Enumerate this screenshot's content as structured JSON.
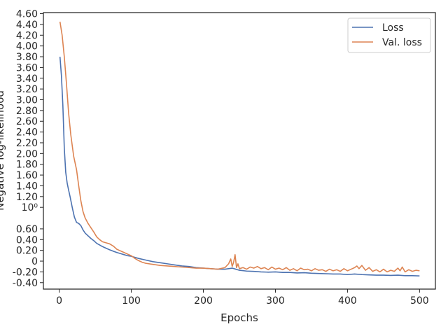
{
  "chart_data": {
    "type": "line",
    "xlabel": "Epochs",
    "ylabel": "Negative log-likelihood",
    "xlim": [
      -22,
      522
    ],
    "ylim": [
      -0.52,
      4.62
    ],
    "xticks": [
      {
        "value": 0,
        "label": "0"
      },
      {
        "value": 100,
        "label": "100"
      },
      {
        "value": 200,
        "label": "200"
      },
      {
        "value": 300,
        "label": "300"
      },
      {
        "value": 400,
        "label": "400"
      },
      {
        "value": 500,
        "label": "500"
      }
    ],
    "yticks": [
      {
        "value": 4.6,
        "label": "4.60"
      },
      {
        "value": 4.4,
        "label": "4.40"
      },
      {
        "value": 4.2,
        "label": "4.20"
      },
      {
        "value": 4.0,
        "label": "4.00"
      },
      {
        "value": 3.8,
        "label": "3.80"
      },
      {
        "value": 3.6,
        "label": "3.60"
      },
      {
        "value": 3.4,
        "label": "3.40"
      },
      {
        "value": 3.2,
        "label": "3.20"
      },
      {
        "value": 3.0,
        "label": "3.00"
      },
      {
        "value": 2.8,
        "label": "2.80"
      },
      {
        "value": 2.6,
        "label": "2.60"
      },
      {
        "value": 2.4,
        "label": "2.40"
      },
      {
        "value": 2.2,
        "label": "2.20"
      },
      {
        "value": 2.0,
        "label": "2.00"
      },
      {
        "value": 1.8,
        "label": "1.80"
      },
      {
        "value": 1.6,
        "label": "1.60"
      },
      {
        "value": 1.4,
        "label": "1.40"
      },
      {
        "value": 1.2,
        "label": "1.20"
      },
      {
        "value": 1.0,
        "label": "10⁰"
      },
      {
        "value": 0.6,
        "label": "0.60"
      },
      {
        "value": 0.4,
        "label": "0.40"
      },
      {
        "value": 0.2,
        "label": "0.20"
      },
      {
        "value": 0.0,
        "label": "0"
      },
      {
        "value": -0.2,
        "label": "-0.20"
      },
      {
        "value": -0.4,
        "label": "-0.40"
      }
    ],
    "legend_position": "top-right",
    "grid": false,
    "series": [
      {
        "name": "Loss",
        "color": "#4c72b0",
        "x": [
          1,
          3,
          5,
          7,
          9,
          11,
          13,
          15,
          18,
          21,
          24,
          27,
          30,
          33,
          36,
          40,
          44,
          48,
          52,
          56,
          60,
          65,
          70,
          75,
          80,
          85,
          90,
          95,
          100,
          110,
          120,
          130,
          140,
          150,
          160,
          170,
          180,
          190,
          200,
          210,
          220,
          230,
          240,
          245,
          250,
          260,
          270,
          280,
          290,
          300,
          310,
          320,
          330,
          340,
          350,
          360,
          370,
          380,
          390,
          400,
          410,
          420,
          430,
          440,
          450,
          460,
          470,
          480,
          490,
          500
        ],
        "y": [
          3.8,
          3.45,
          2.9,
          2.1,
          1.65,
          1.45,
          1.32,
          1.2,
          1.0,
          0.82,
          0.72,
          0.7,
          0.66,
          0.58,
          0.52,
          0.47,
          0.42,
          0.38,
          0.33,
          0.3,
          0.27,
          0.24,
          0.21,
          0.185,
          0.16,
          0.14,
          0.12,
          0.1,
          0.09,
          0.05,
          0.02,
          -0.01,
          -0.03,
          -0.05,
          -0.07,
          -0.09,
          -0.1,
          -0.12,
          -0.13,
          -0.14,
          -0.15,
          -0.15,
          -0.13,
          -0.15,
          -0.17,
          -0.185,
          -0.19,
          -0.2,
          -0.205,
          -0.2,
          -0.21,
          -0.21,
          -0.22,
          -0.215,
          -0.225,
          -0.23,
          -0.235,
          -0.24,
          -0.24,
          -0.25,
          -0.24,
          -0.25,
          -0.255,
          -0.26,
          -0.26,
          -0.265,
          -0.26,
          -0.27,
          -0.27,
          -0.275
        ]
      },
      {
        "name": "Val. loss",
        "color": "#dd8452",
        "x": [
          1,
          4,
          7,
          10,
          13,
          16,
          20,
          24,
          27,
          30,
          33,
          36,
          40,
          44,
          48,
          52,
          56,
          60,
          65,
          70,
          75,
          80,
          85,
          90,
          95,
          100,
          105,
          110,
          115,
          120,
          130,
          140,
          150,
          160,
          170,
          180,
          190,
          200,
          210,
          220,
          230,
          235,
          238,
          240,
          242,
          244,
          246,
          248,
          250,
          255,
          260,
          265,
          270,
          275,
          280,
          285,
          290,
          295,
          300,
          305,
          310,
          315,
          320,
          325,
          330,
          335,
          340,
          345,
          350,
          355,
          360,
          365,
          370,
          375,
          380,
          385,
          390,
          395,
          400,
          405,
          410,
          413,
          416,
          420,
          425,
          430,
          435,
          440,
          445,
          450,
          455,
          460,
          465,
          470,
          473,
          476,
          480,
          485,
          490,
          495,
          500
        ],
        "y": [
          4.45,
          4.2,
          3.8,
          3.3,
          2.75,
          2.35,
          1.95,
          1.7,
          1.4,
          1.12,
          0.92,
          0.8,
          0.7,
          0.62,
          0.54,
          0.45,
          0.4,
          0.36,
          0.34,
          0.32,
          0.28,
          0.22,
          0.19,
          0.16,
          0.13,
          0.1,
          0.05,
          0.01,
          -0.02,
          -0.04,
          -0.06,
          -0.08,
          -0.09,
          -0.1,
          -0.11,
          -0.12,
          -0.13,
          -0.13,
          -0.14,
          -0.15,
          -0.12,
          -0.05,
          0.04,
          -0.1,
          -0.02,
          0.12,
          -0.12,
          -0.05,
          -0.14,
          -0.12,
          -0.15,
          -0.11,
          -0.13,
          -0.1,
          -0.14,
          -0.12,
          -0.16,
          -0.11,
          -0.15,
          -0.13,
          -0.16,
          -0.12,
          -0.17,
          -0.14,
          -0.18,
          -0.13,
          -0.16,
          -0.15,
          -0.18,
          -0.14,
          -0.17,
          -0.16,
          -0.19,
          -0.15,
          -0.18,
          -0.16,
          -0.19,
          -0.14,
          -0.18,
          -0.15,
          -0.12,
          -0.09,
          -0.14,
          -0.08,
          -0.17,
          -0.12,
          -0.19,
          -0.16,
          -0.2,
          -0.15,
          -0.2,
          -0.17,
          -0.19,
          -0.13,
          -0.18,
          -0.11,
          -0.2,
          -0.16,
          -0.19,
          -0.17,
          -0.18
        ]
      }
    ]
  }
}
